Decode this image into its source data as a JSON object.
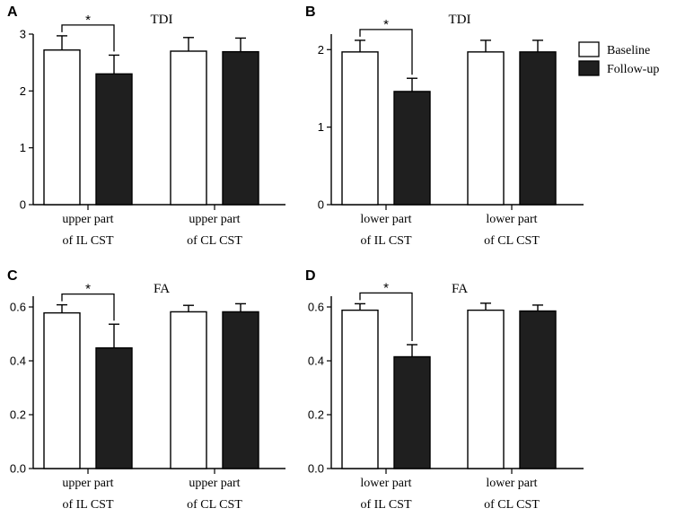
{
  "chart_data": [
    {
      "panel": "A",
      "type": "bar",
      "title": "TDI",
      "categories": [
        [
          "upper part",
          "of IL CST"
        ],
        [
          "upper part",
          "of CL CST"
        ]
      ],
      "series": [
        {
          "name": "Baseline",
          "values": [
            2.72,
            2.7
          ],
          "errors": [
            0.25,
            0.24
          ]
        },
        {
          "name": "Follow-up",
          "values": [
            2.3,
            2.69
          ],
          "errors": [
            0.33,
            0.24
          ]
        }
      ],
      "ylim": [
        0,
        3
      ],
      "yticks": [
        0,
        1,
        2,
        3
      ],
      "ytick_labels": [
        "0",
        "1",
        "2",
        "3"
      ],
      "significance": {
        "category": 0,
        "label": "*"
      }
    },
    {
      "panel": "B",
      "type": "bar",
      "title": "TDI",
      "categories": [
        [
          "lower part",
          "of IL CST"
        ],
        [
          "lower part",
          "of CL CST"
        ]
      ],
      "series": [
        {
          "name": "Baseline",
          "values": [
            1.97,
            1.97
          ],
          "errors": [
            0.15,
            0.15
          ]
        },
        {
          "name": "Follow-up",
          "values": [
            1.46,
            1.97
          ],
          "errors": [
            0.17,
            0.15
          ]
        }
      ],
      "ylim": [
        0,
        2.2
      ],
      "yticks": [
        0,
        1,
        2
      ],
      "ytick_labels": [
        "0",
        "1",
        "2"
      ],
      "significance": {
        "category": 0,
        "label": "*"
      }
    },
    {
      "panel": "C",
      "type": "bar",
      "title": "FA",
      "categories": [
        [
          "upper part",
          "of IL CST"
        ],
        [
          "upper part",
          "of CL CST"
        ]
      ],
      "series": [
        {
          "name": "Baseline",
          "values": [
            0.578,
            0.582
          ],
          "errors": [
            0.03,
            0.024
          ]
        },
        {
          "name": "Follow-up",
          "values": [
            0.448,
            0.582
          ],
          "errors": [
            0.088,
            0.03
          ]
        }
      ],
      "ylim": [
        0,
        0.64
      ],
      "yticks": [
        0,
        0.2,
        0.4,
        0.6
      ],
      "ytick_labels": [
        "0.0",
        "0.2",
        "0.4",
        "0.6"
      ],
      "significance": {
        "category": 0,
        "label": "*"
      }
    },
    {
      "panel": "D",
      "type": "bar",
      "title": "FA",
      "categories": [
        [
          "lower part",
          "of IL CST"
        ],
        [
          "lower part",
          "of CL CST"
        ]
      ],
      "series": [
        {
          "name": "Baseline",
          "values": [
            0.588,
            0.588
          ],
          "errors": [
            0.024,
            0.026
          ]
        },
        {
          "name": "Follow-up",
          "values": [
            0.415,
            0.585
          ],
          "errors": [
            0.045,
            0.022
          ]
        }
      ],
      "ylim": [
        0,
        0.64
      ],
      "yticks": [
        0,
        0.2,
        0.4,
        0.6
      ],
      "ytick_labels": [
        "0.0",
        "0.2",
        "0.4",
        "0.6"
      ],
      "significance": {
        "category": 0,
        "label": "*"
      }
    }
  ],
  "legend": {
    "placement": "top-right",
    "items": [
      {
        "label": "Baseline",
        "fill": "#ffffff"
      },
      {
        "label": "Follow-up",
        "fill": "#1f1f1f"
      }
    ]
  },
  "colors": {
    "baseline": "#ffffff",
    "followup": "#1f1f1f",
    "stroke": "#000000"
  }
}
